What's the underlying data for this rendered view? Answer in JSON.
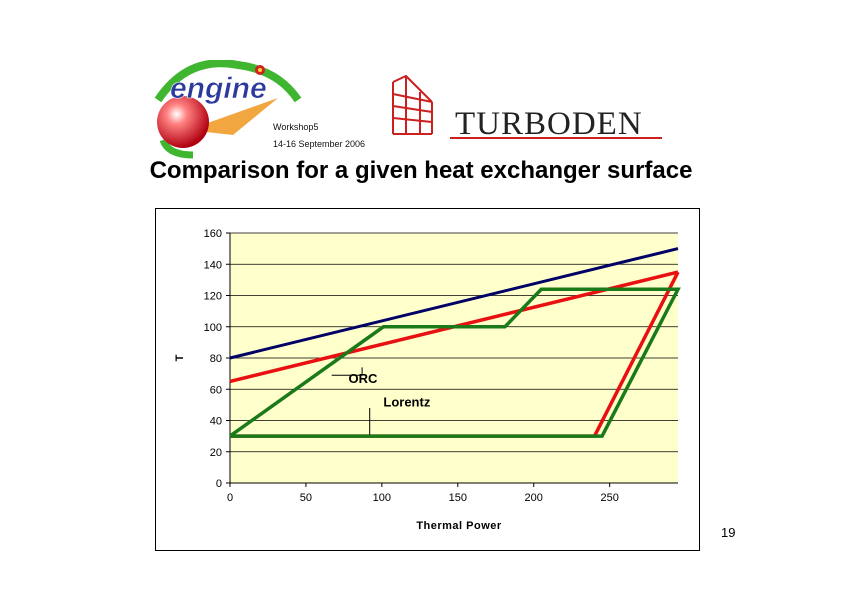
{
  "header": {
    "workshop_name": "Workshop5",
    "workshop_date": "14-16 September 2006",
    "engine_logo_text": "engine",
    "turboden_logo_text": "TURBODEN"
  },
  "slide": {
    "title": "Comparison for a given heat exchanger surface",
    "page_number": "19"
  },
  "colors": {
    "plot_bg": "#ffffcc",
    "hot_source": "#000066",
    "lorentz": "#e81010",
    "orc": "#1a7a1a",
    "engine_logo_blue": "#2b3a9c",
    "turboden_red": "#cc2020"
  },
  "chart_data": {
    "type": "line",
    "title": "",
    "xlabel": "Thermal Power",
    "ylabel": "T",
    "xlim": [
      0,
      295
    ],
    "ylim": [
      0,
      160
    ],
    "x_ticks": [
      0,
      50,
      100,
      150,
      200,
      250
    ],
    "y_ticks": [
      0,
      20,
      40,
      60,
      80,
      100,
      120,
      140,
      160
    ],
    "grid": "horizontal",
    "series": [
      {
        "id": "hot",
        "color_key": "hot_source",
        "points": [
          [
            0,
            80
          ],
          [
            295,
            150
          ]
        ]
      },
      {
        "id": "lorentz-hot",
        "color_key": "lorentz",
        "points": [
          [
            0,
            65
          ],
          [
            295,
            135
          ]
        ]
      },
      {
        "id": "lorentz-cycle",
        "color_key": "lorentz",
        "points": [
          [
            0,
            30
          ],
          [
            240,
            30
          ],
          [
            295,
            135
          ]
        ]
      },
      {
        "id": "orc-cycle",
        "color_key": "orc",
        "points": [
          [
            0,
            30
          ],
          [
            101,
            100
          ],
          [
            181,
            100
          ],
          [
            205,
            124
          ],
          [
            295,
            124
          ],
          [
            245,
            30
          ],
          [
            0,
            30
          ]
        ]
      }
    ],
    "annotations": [
      {
        "text": "ORC",
        "leader": [
          [
            67,
            69
          ],
          [
            87,
            69
          ],
          [
            87,
            74
          ]
        ],
        "label_at": [
          78,
          64
        ]
      },
      {
        "text": "Lorentz",
        "leader": [
          [
            92,
            48
          ],
          [
            92,
            31
          ]
        ],
        "label_at": [
          101,
          49
        ]
      }
    ]
  }
}
